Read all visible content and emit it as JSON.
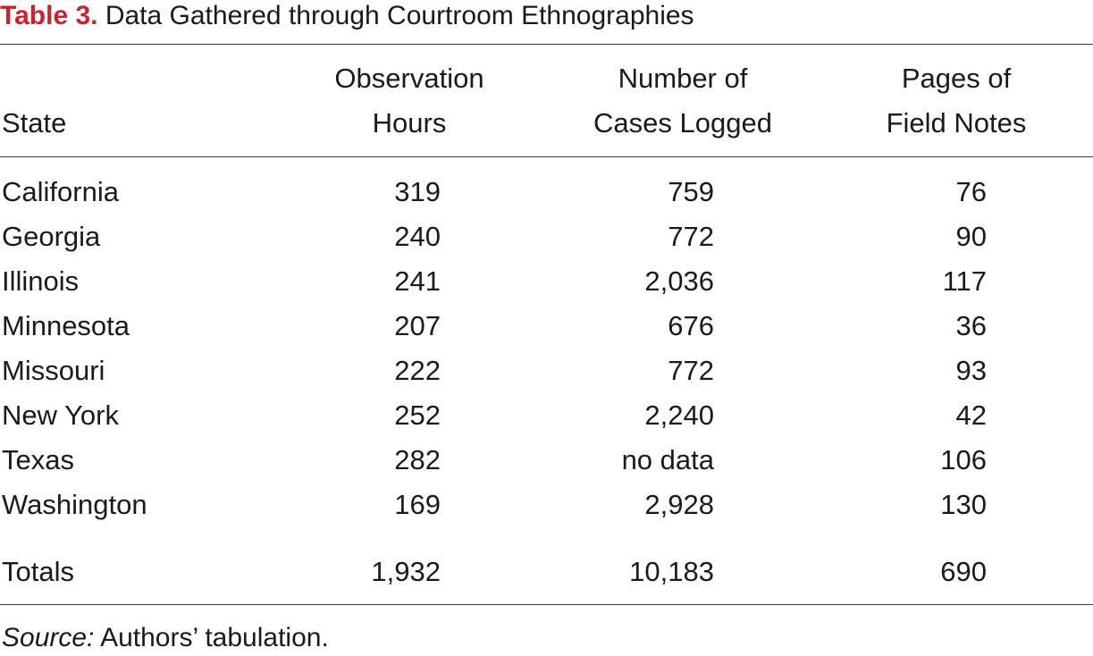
{
  "caption": {
    "label": "Table 3.",
    "title": "Data Gathered through Courtroom Ethnographies"
  },
  "table": {
    "headers": {
      "state": "State",
      "hours_line1": "Observation",
      "hours_line2": "Hours",
      "cases_line1": "Number of",
      "cases_line2": "Cases Logged",
      "notes_line1": "Pages of",
      "notes_line2": "Field Notes"
    },
    "rows": [
      {
        "state": "California",
        "hours": "319",
        "cases": "759",
        "notes": "76"
      },
      {
        "state": "Georgia",
        "hours": "240",
        "cases": "772",
        "notes": "90"
      },
      {
        "state": "Illinois",
        "hours": "241",
        "cases": "2,036",
        "notes": "117"
      },
      {
        "state": "Minnesota",
        "hours": "207",
        "cases": "676",
        "notes": "36"
      },
      {
        "state": "Missouri",
        "hours": "222",
        "cases": "772",
        "notes": "93"
      },
      {
        "state": "New York",
        "hours": "252",
        "cases": "2,240",
        "notes": "42"
      },
      {
        "state": "Texas",
        "hours": "282",
        "cases": "no data",
        "notes": "106"
      },
      {
        "state": "Washington",
        "hours": "169",
        "cases": "2,928",
        "notes": "130"
      }
    ],
    "totals": {
      "state": "Totals",
      "hours": "1,932",
      "cases": "10,183",
      "notes": "690"
    }
  },
  "source": {
    "label": "Source:",
    "text": " Authors’ tabulation."
  }
}
